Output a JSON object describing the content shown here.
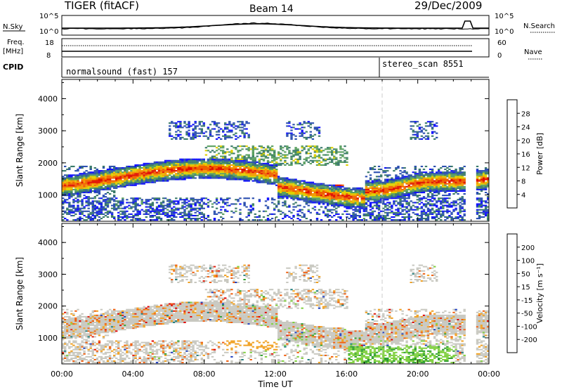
{
  "header": {
    "title": "TIGER (fitACF)",
    "beam": "Beam 14",
    "date": "29/Dec/2009"
  },
  "top_panels": {
    "nsky_label": "N.Sky",
    "nsearch_label": "N.Search",
    "left_ticks": [
      "10^5",
      "10^0"
    ],
    "right_ticks": [
      "10^5",
      "10^0"
    ],
    "freq_label_1": "Freq.",
    "freq_label_2": "[MHz]",
    "freq_ticks": [
      "18",
      "8"
    ],
    "nave_ticks": [
      "60",
      "0"
    ],
    "nave_label": "Nave",
    "cpid_label": "CPID",
    "cpid_1": "normalsound (fast) 157",
    "cpid_2": "stereo_scan 8551"
  },
  "x_axis": {
    "label": "Time UT",
    "ticks": [
      "00:00",
      "04:00",
      "08:00",
      "12:00",
      "16:00",
      "20:00",
      "00:00"
    ]
  },
  "chart_data": [
    {
      "type": "heatmap",
      "name": "power",
      "ylabel": "Slant Range [km]",
      "ylim": [
        180,
        4600
      ],
      "yticks": [
        "1000",
        "2000",
        "3000",
        "4000"
      ],
      "xlim_hours": [
        0,
        24
      ],
      "colorbar_label": "Power [dB]",
      "colorbar_ticks": [
        "4",
        "8",
        "12",
        "16",
        "20",
        "24",
        "28"
      ],
      "colorbar_colors": [
        "#1010ff",
        "#2c50b0",
        "#3a7a6a",
        "#5aa060",
        "#e0d000",
        "#f39a00",
        "#f06000",
        "#e01000"
      ]
    },
    {
      "type": "heatmap",
      "name": "velocity",
      "ylabel": "Slant Range [km]",
      "ylim": [
        180,
        4600
      ],
      "yticks": [
        "1000",
        "2000",
        "3000",
        "4000"
      ],
      "xlim_hours": [
        0,
        24
      ],
      "colorbar_label": "Velocity [m s⁻¹]",
      "colorbar_ticks": [
        "200",
        "100",
        "50",
        "15",
        "-15",
        "-50",
        "-100",
        "-200"
      ],
      "colorbar_colors": [
        "#2040c0",
        "#208080",
        "#30a030",
        "#80d040",
        "#c8c8c0",
        "#f0a020",
        "#f06010",
        "#e02010",
        "#e00000"
      ]
    }
  ]
}
